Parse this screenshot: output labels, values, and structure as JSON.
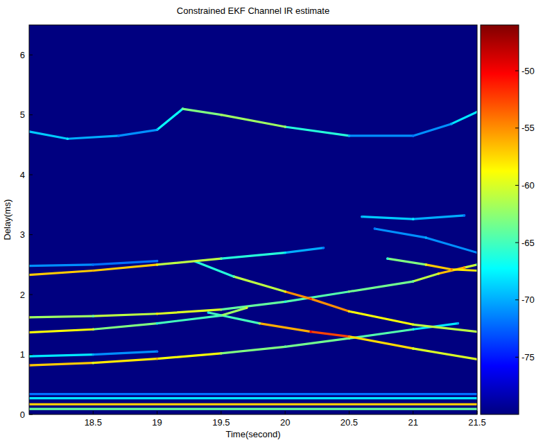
{
  "chart_data": {
    "type": "heatmap_tracks",
    "title": "Constrained EKF Channel IR estimate",
    "x_label": "Time(second)",
    "y_label": "Delay(ms)",
    "xlim": [
      18,
      21.5
    ],
    "ylim": [
      0,
      6.5
    ],
    "xticks": [
      18.5,
      19,
      19.5,
      20,
      20.5,
      21,
      21.5
    ],
    "yticks": [
      0,
      1,
      2,
      3,
      4,
      5,
      6
    ],
    "colorbar": {
      "range": [
        -80,
        -46
      ],
      "ticks": [
        -50,
        -55,
        -60,
        -65,
        -70,
        -75
      ]
    },
    "series": [
      {
        "x": [
          18,
          21.5
        ],
        "values": [
          0.09,
          0.09
        ],
        "levels": [
          -64,
          -64
        ]
      },
      {
        "x": [
          18,
          21.5
        ],
        "values": [
          0.17,
          0.17
        ],
        "levels": [
          -57,
          -57
        ]
      },
      {
        "x": [
          18,
          21.5
        ],
        "values": [
          0.27,
          0.27
        ],
        "levels": [
          -68,
          -68
        ]
      },
      {
        "x": [
          18,
          21.5
        ],
        "values": [
          0.34,
          0.34
        ],
        "levels": [
          -72,
          -72
        ]
      },
      {
        "x": [
          18,
          18.5,
          19,
          19.5,
          20,
          20.5,
          21,
          21.35
        ],
        "values": [
          0.82,
          0.86,
          0.93,
          1.02,
          1.13,
          1.27,
          1.42,
          1.52
        ],
        "levels": [
          -54,
          -60,
          -56,
          -62,
          -64,
          -63,
          -66,
          -70
        ]
      },
      {
        "x": [
          19.4,
          19.8,
          20.2,
          20.5,
          21,
          21.5
        ],
        "values": [
          1.7,
          1.52,
          1.38,
          1.3,
          1.1,
          0.92
        ],
        "levels": [
          -68,
          -62,
          -50,
          -55,
          -60,
          -60
        ]
      },
      {
        "x": [
          18,
          18.5,
          19,
          19.5,
          20,
          20.5,
          21,
          21.2,
          21.4,
          21.5
        ],
        "values": [
          1.62,
          1.64,
          1.68,
          1.75,
          1.88,
          2.05,
          2.22,
          2.35,
          2.45,
          2.5
        ],
        "levels": [
          -60,
          -64,
          -58,
          -62,
          -66,
          -63,
          -64,
          -58,
          -55,
          -66
        ]
      },
      {
        "x": [
          19.3,
          19.6,
          20,
          20.2,
          20.5,
          21,
          21.5
        ],
        "values": [
          2.55,
          2.3,
          2.05,
          1.93,
          1.72,
          1.5,
          1.38
        ],
        "levels": [
          -68,
          -64,
          -58,
          -52,
          -58,
          -60,
          -62
        ]
      },
      {
        "x": [
          18,
          18.5,
          19,
          19.5,
          20,
          20.3
        ],
        "values": [
          2.33,
          2.4,
          2.5,
          2.6,
          2.7,
          2.78
        ],
        "levels": [
          -58,
          -56,
          -58,
          -64,
          -68,
          -72
        ]
      },
      {
        "x": [
          18,
          18.5,
          19,
          19.5,
          19.7
        ],
        "values": [
          1.37,
          1.42,
          1.52,
          1.65,
          1.78
        ],
        "levels": [
          -58,
          -60,
          -66,
          -64,
          -60
        ]
      },
      {
        "x": [
          18,
          18.5,
          19
        ],
        "values": [
          2.48,
          2.5,
          2.56
        ],
        "levels": [
          -70,
          -72,
          -72
        ]
      },
      {
        "x": [
          18,
          18.5,
          19
        ],
        "values": [
          0.97,
          1.0,
          1.05
        ],
        "levels": [
          -66,
          -70,
          -72
        ]
      },
      {
        "x": [
          20.6,
          21,
          21.4
        ],
        "values": [
          3.3,
          3.26,
          3.32
        ],
        "levels": [
          -70,
          -68,
          -72
        ]
      },
      {
        "x": [
          20.7,
          21.1,
          21.5
        ],
        "values": [
          3.1,
          2.95,
          2.7
        ],
        "levels": [
          -72,
          -70,
          -72
        ]
      },
      {
        "x": [
          20.8,
          21.1,
          21.3,
          21.5
        ],
        "values": [
          2.6,
          2.5,
          2.42,
          2.4
        ],
        "levels": [
          -66,
          -60,
          -54,
          -62
        ]
      },
      {
        "x": [
          18,
          18.3,
          18.7,
          19,
          19.2,
          19.5,
          20,
          20.5,
          21,
          21.3,
          21.5
        ],
        "values": [
          4.72,
          4.6,
          4.65,
          4.75,
          5.1,
          5.0,
          4.8,
          4.65,
          4.65,
          4.85,
          5.05
        ],
        "levels": [
          -70,
          -68,
          -72,
          -70,
          -64,
          -62,
          -62,
          -70,
          -72,
          -70,
          -66
        ]
      }
    ]
  }
}
